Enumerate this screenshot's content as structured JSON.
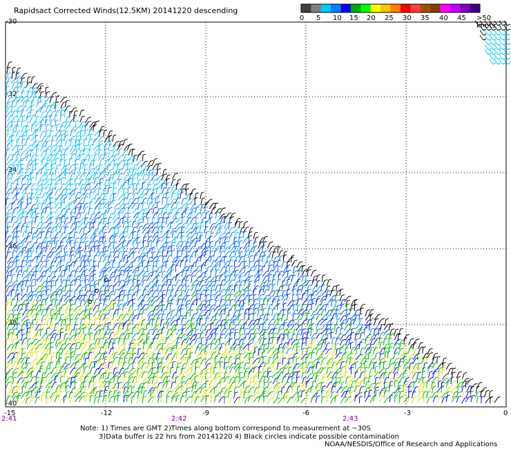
{
  "title": "Rapidsact Corrected Winds(12.5KM) 20141220 descending",
  "color_scale": {
    "colors": [
      "#404040",
      "#808080",
      "#00c8ff",
      "#0080ff",
      "#0000ff",
      "#00aa00",
      "#00ff00",
      "#ffff00",
      "#ffc800",
      "#ff8000",
      "#ff0000",
      "#ff4040",
      "#a05000",
      "#804000",
      "#ff00ff",
      "#c000ff",
      "#8000c0",
      "#400080"
    ],
    "labels": [
      "0",
      "5",
      "10",
      "15",
      "20",
      "25",
      "30",
      "35",
      "40",
      "45",
      ">50 knots"
    ]
  },
  "y_labels": [
    "-30",
    "-32",
    "-34",
    "-36",
    "-38",
    "-40"
  ],
  "x_labels": [
    "-15",
    "-12",
    "-9",
    "-6",
    "-3",
    "0"
  ],
  "times": [
    "2:41",
    "2:42",
    "2:43"
  ],
  "notes": [
    "Note: 1) Times are GMT 2)Times along bottom correspond to measurement at ~30S",
    "3)Data buffer is 22 hrs from 20141220 4) Black circles indicate possible contamination",
    "NOAA/NESDIS/Office of Research and Applications"
  ]
}
